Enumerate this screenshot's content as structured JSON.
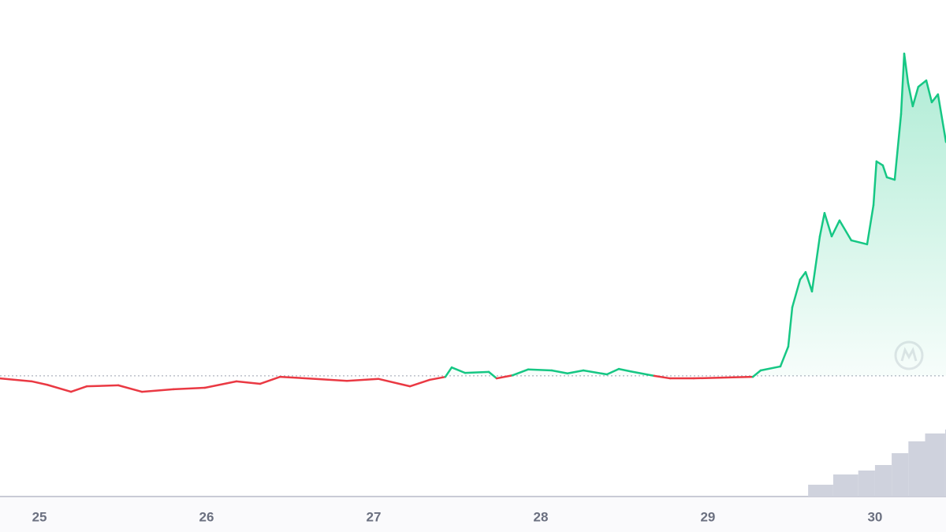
{
  "chart_data": {
    "type": "line",
    "x": [
      24.764,
      24.953,
      25.047,
      25.189,
      25.283,
      25.472,
      25.613,
      25.802,
      25.99,
      26.179,
      26.321,
      26.439,
      26.651,
      26.84,
      27.028,
      27.217,
      27.335,
      27.429,
      27.467,
      27.547,
      27.689,
      27.736,
      27.83,
      27.925,
      28.066,
      28.16,
      28.255,
      28.396,
      28.467,
      28.538,
      28.679,
      28.774,
      28.915,
      29.151,
      29.269,
      29.316,
      29.434,
      29.481,
      29.505,
      29.552,
      29.585,
      29.623,
      29.67,
      29.698,
      29.741,
      29.788,
      29.858,
      29.953,
      29.991,
      30.009,
      30.047,
      30.071,
      30.118,
      30.156,
      30.175,
      30.198,
      30.226,
      30.259,
      30.307,
      30.34,
      30.377,
      30.425
    ],
    "values": [
      23.8,
      23.2,
      22.5,
      21.1,
      22.2,
      22.4,
      21.1,
      21.6,
      21.9,
      23.2,
      22.7,
      24.1,
      23.7,
      23.3,
      23.7,
      22.2,
      23.5,
      24.1,
      26.0,
      24.9,
      25.1,
      23.8,
      24.4,
      25.6,
      25.4,
      24.8,
      25.4,
      24.6,
      25.7,
      25.2,
      24.3,
      23.8,
      23.8,
      24.0,
      24.1,
      25.4,
      26.2,
      30.2,
      38.1,
      43.7,
      45.2,
      41.3,
      52.4,
      57.1,
      52.4,
      55.6,
      51.6,
      50.8,
      58.7,
      67.5,
      66.7,
      64.3,
      63.8,
      77.0,
      89.2,
      83.3,
      78.6,
      82.5,
      83.8,
      79.4,
      81.0,
      71.4
    ],
    "baseline": 24.3,
    "up_color": "#16c784",
    "down_color": "#ea3943",
    "xlim": [
      24.764,
      30.425
    ],
    "ylim": [
      0,
      100
    ],
    "xticks": [
      25,
      26,
      27,
      28,
      29,
      30
    ],
    "volume": {
      "x": [
        29.48,
        29.6,
        29.75,
        29.9,
        30.0,
        30.1,
        30.2,
        30.3,
        30.42
      ],
      "values": [
        0,
        15,
        28,
        33,
        40,
        55,
        70,
        80,
        85
      ],
      "ylim": [
        0,
        100
      ],
      "color": "#cfd2dd"
    }
  }
}
